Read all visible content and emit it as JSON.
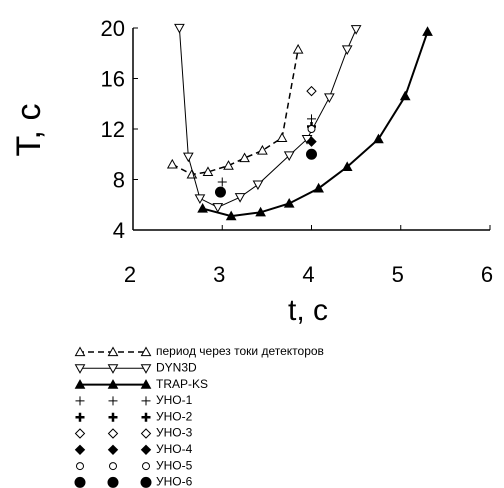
{
  "chart_data": {
    "type": "line",
    "x_label": "t, c",
    "y_label": "T, c",
    "xlim": [
      2,
      6
    ],
    "ylim": [
      4,
      20
    ],
    "xticks": [
      2,
      3,
      4,
      5,
      6
    ],
    "yticks": [
      4,
      8,
      12,
      16,
      20
    ],
    "series": [
      {
        "name": "период через токи детекторов",
        "color": "#000000",
        "line": "dashed",
        "marker": "triangle-up-open",
        "x": [
          2.44,
          2.66,
          2.84,
          3.07,
          3.25,
          3.45,
          3.67,
          3.85
        ],
        "values": [
          9.2,
          8.4,
          8.6,
          9.1,
          9.7,
          10.3,
          11.3,
          18.3
        ]
      },
      {
        "name": "DYN3D",
        "color": "#000000",
        "line": "solid",
        "marker": "triangle-down-open",
        "x": [
          2.52,
          2.62,
          2.75,
          2.95,
          3.2,
          3.4,
          3.75,
          3.95,
          4.2,
          4.4,
          4.5
        ],
        "values": [
          20,
          9.8,
          6.5,
          5.8,
          6.6,
          7.6,
          9.9,
          11.2,
          14.5,
          18.3,
          19.9
        ]
      },
      {
        "name": "TRAP-KS",
        "color": "#000000",
        "line": "bold",
        "marker": "triangle-up-filled",
        "x": [
          2.78,
          3.1,
          3.43,
          3.75,
          4.08,
          4.4,
          4.75,
          5.05,
          5.3
        ],
        "values": [
          5.7,
          5.1,
          5.4,
          6.1,
          7.3,
          9.0,
          11.2,
          14.6,
          19.7
        ]
      },
      {
        "name": "УНО-1",
        "color": "#000000",
        "line": "none",
        "marker": "plus",
        "x": [
          3.0,
          4.0
        ],
        "values": [
          7.8,
          12.8
        ]
      },
      {
        "name": "УНО-2",
        "color": "#000000",
        "line": "none",
        "marker": "plus-bold",
        "x": [
          4.0
        ],
        "values": [
          12.2
        ]
      },
      {
        "name": "УНО-3",
        "color": "#000000",
        "line": "none",
        "marker": "diamond-open",
        "x": [
          4.0
        ],
        "values": [
          15.0
        ]
      },
      {
        "name": "УНО-4",
        "color": "#000000",
        "line": "none",
        "marker": "diamond-filled",
        "x": [
          4.0
        ],
        "values": [
          11.0
        ]
      },
      {
        "name": "УНО-5",
        "color": "#000000",
        "line": "none",
        "marker": "circle-open",
        "x": [
          4.0
        ],
        "values": [
          12.0
        ]
      },
      {
        "name": "УНО-6",
        "color": "#000000",
        "line": "none",
        "marker": "circle-filled",
        "x": [
          2.98,
          4.0
        ],
        "values": [
          7.0,
          10.0
        ]
      }
    ]
  }
}
